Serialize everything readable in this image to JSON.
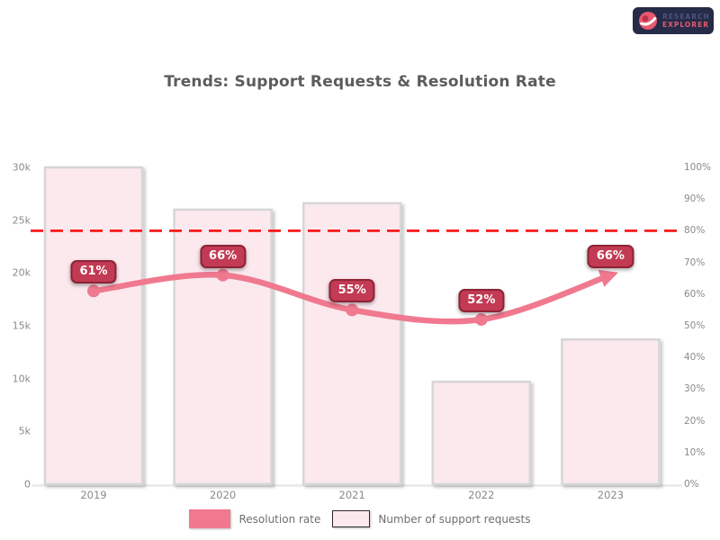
{
  "logo": {
    "line1": "RESEARCH",
    "line2": "EXPLORER"
  },
  "chart_data": {
    "type": "bar",
    "title": "Trends: Support Requests & Resolution Rate",
    "categories": [
      "2019",
      "2020",
      "2021",
      "2022",
      "2023"
    ],
    "series": [
      {
        "name": "Number of support requests",
        "type": "bar",
        "axis": "left",
        "values": [
          30000,
          26000,
          26600,
          9700,
          13700
        ]
      },
      {
        "name": "Resolution rate",
        "type": "line",
        "axis": "right",
        "values": [
          61,
          66,
          55,
          52,
          66
        ],
        "point_labels": [
          "61%",
          "66%",
          "55%",
          "52%",
          "66%"
        ]
      }
    ],
    "left_axis": {
      "min": 0,
      "max": 30000,
      "ticks": [
        "30k",
        "25k",
        "20k",
        "15k",
        "10k",
        "5k",
        "0"
      ]
    },
    "right_axis": {
      "min": 0,
      "max": 100,
      "ticks": [
        "100%",
        "90%",
        "80%",
        "70%",
        "60%",
        "50%",
        "40%",
        "30%",
        "20%",
        "10%",
        "0%"
      ]
    },
    "target_line": {
      "value": 80,
      "style": "dashed"
    },
    "legend": [
      {
        "label": "Resolution rate",
        "swatch": "#f0798f",
        "border": "none"
      },
      {
        "label": "Number of support requests",
        "swatch": "#fbe9ee",
        "border": "#2b2b2b"
      }
    ],
    "colors": {
      "bar_fill": "#fbe9ee",
      "bar_border": "#d6d6d6",
      "line": "#f0798f",
      "label_box": "#c23a53",
      "label_box_border": "#8e2336",
      "target": "#f90f0f",
      "title_text": "#5c5c5c",
      "axis_text": "#8a8a8a"
    },
    "layout": {
      "grid": "off",
      "legend_position": "bottom",
      "dual_axis": true
    }
  }
}
